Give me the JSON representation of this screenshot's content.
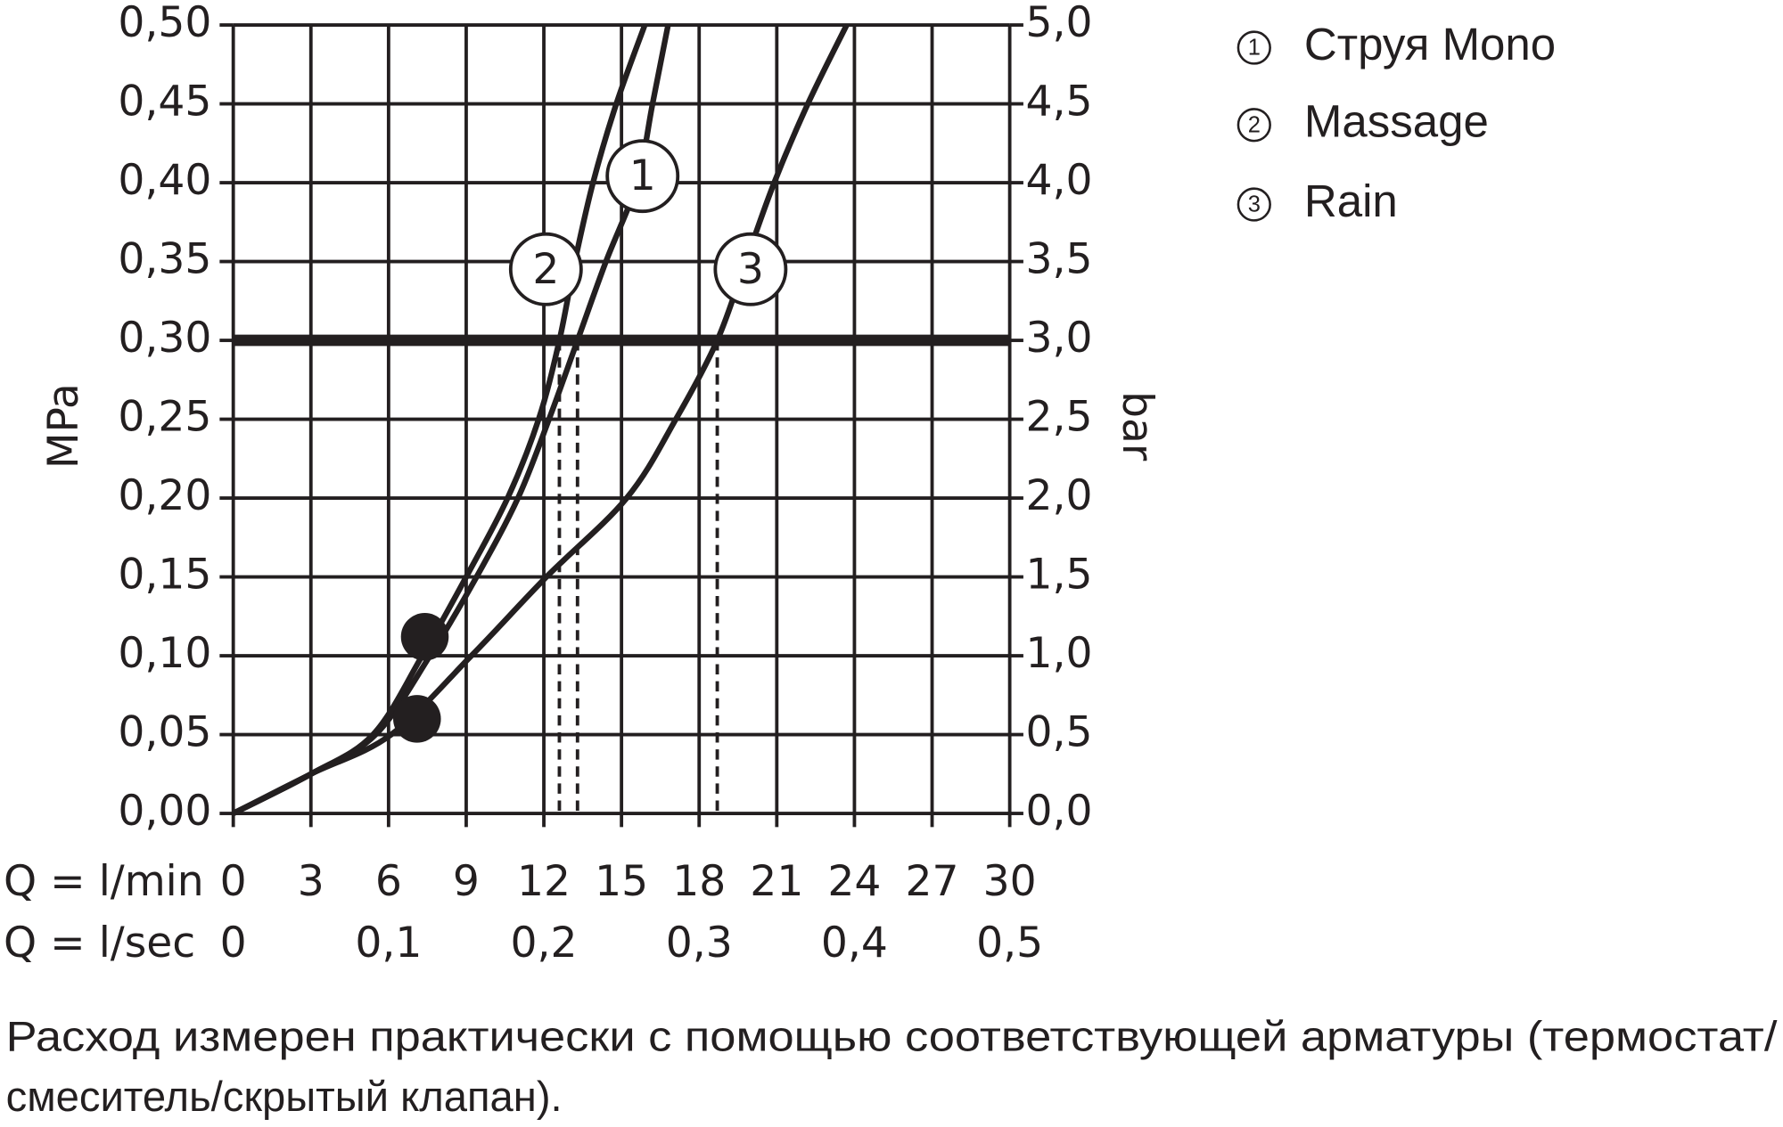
{
  "chart_data": {
    "type": "line",
    "ylabel": "MPa",
    "y2label": "bar",
    "xlabel": "Q = l/min",
    "x2label": "Q = l/sec",
    "xlim": [
      0,
      30
    ],
    "xticks": [
      0,
      3,
      6,
      9,
      12,
      15,
      18,
      21,
      24,
      27,
      30
    ],
    "x2lim": [
      0,
      0.5
    ],
    "x2ticks": [
      0,
      {
        "value": 0.1,
        "label": "0,1"
      },
      {
        "value": 0.2,
        "label": "0,2"
      },
      {
        "value": 0.3,
        "label": "0,3"
      },
      {
        "value": 0.4,
        "label": "0,4"
      },
      {
        "value": 0.5,
        "label": "0,5"
      }
    ],
    "ylim": [
      0,
      0.5
    ],
    "yticks": [
      {
        "value": 0,
        "label": "0,00"
      },
      {
        "value": 0.05,
        "label": "0,05"
      },
      {
        "value": 0.1,
        "label": "0,10"
      },
      {
        "value": 0.15,
        "label": "0,15"
      },
      {
        "value": 0.2,
        "label": "0,20"
      },
      {
        "value": 0.25,
        "label": "0,25"
      },
      {
        "value": 0.3,
        "label": "0,30"
      },
      {
        "value": 0.35,
        "label": "0,35"
      },
      {
        "value": 0.4,
        "label": "0,40"
      },
      {
        "value": 0.45,
        "label": "0,45"
      },
      {
        "value": 0.5,
        "label": "0,50"
      }
    ],
    "y2lim": [
      0,
      5
    ],
    "y2ticks": [
      {
        "value": 0,
        "label": "0,0"
      },
      {
        "value": 0.5,
        "label": "0,5"
      },
      {
        "value": 1,
        "label": "1,0"
      },
      {
        "value": 1.5,
        "label": "1,5"
      },
      {
        "value": 2,
        "label": "2,0"
      },
      {
        "value": 2.5,
        "label": "2,5"
      },
      {
        "value": 3,
        "label": "3,0"
      },
      {
        "value": 3.5,
        "label": "3,5"
      },
      {
        "value": 4,
        "label": "4,0"
      },
      {
        "value": 4.5,
        "label": "4,5"
      },
      {
        "value": 5,
        "label": "5,0"
      }
    ],
    "grid": true,
    "color": "#231f20",
    "reference_line": 0.3,
    "series": [
      {
        "name": "Струя Mono",
        "label": "1",
        "x": [
          0,
          3,
          5.5,
          7.6,
          9.4,
          11.0,
          12.2,
          13.3,
          14.4,
          15.6,
          16.2,
          16.8
        ],
        "values": [
          0,
          0.025,
          0.05,
          0.1,
          0.15,
          0.2,
          0.25,
          0.3,
          0.35,
          0.4,
          0.45,
          0.5
        ]
      },
      {
        "name": "Massage",
        "label": "2",
        "x": [
          0,
          3,
          5.4,
          7.3,
          9.0,
          10.6,
          11.8,
          12.6,
          13.2,
          13.9,
          14.8,
          15.9
        ],
        "values": [
          0,
          0.025,
          0.05,
          0.1,
          0.15,
          0.2,
          0.25,
          0.3,
          0.35,
          0.4,
          0.45,
          0.5
        ]
      },
      {
        "name": "Rain",
        "label": "3",
        "x": [
          0,
          3,
          6.1,
          9.2,
          12.1,
          15.2,
          17.1,
          18.7,
          19.8,
          20.9,
          22.2,
          23.7
        ],
        "values": [
          0,
          0.025,
          0.05,
          0.1,
          0.15,
          0.2,
          0.25,
          0.3,
          0.35,
          0.4,
          0.45,
          0.5
        ]
      }
    ],
    "points": [
      {
        "x": 7.4,
        "y": 0.112
      },
      {
        "x": 7.1,
        "y": 0.06
      }
    ],
    "footnote": [
      "Расход измерен практически с помощью соответствующей арматуры (термостат/",
      "смеситель/скрытый клапан)."
    ]
  }
}
